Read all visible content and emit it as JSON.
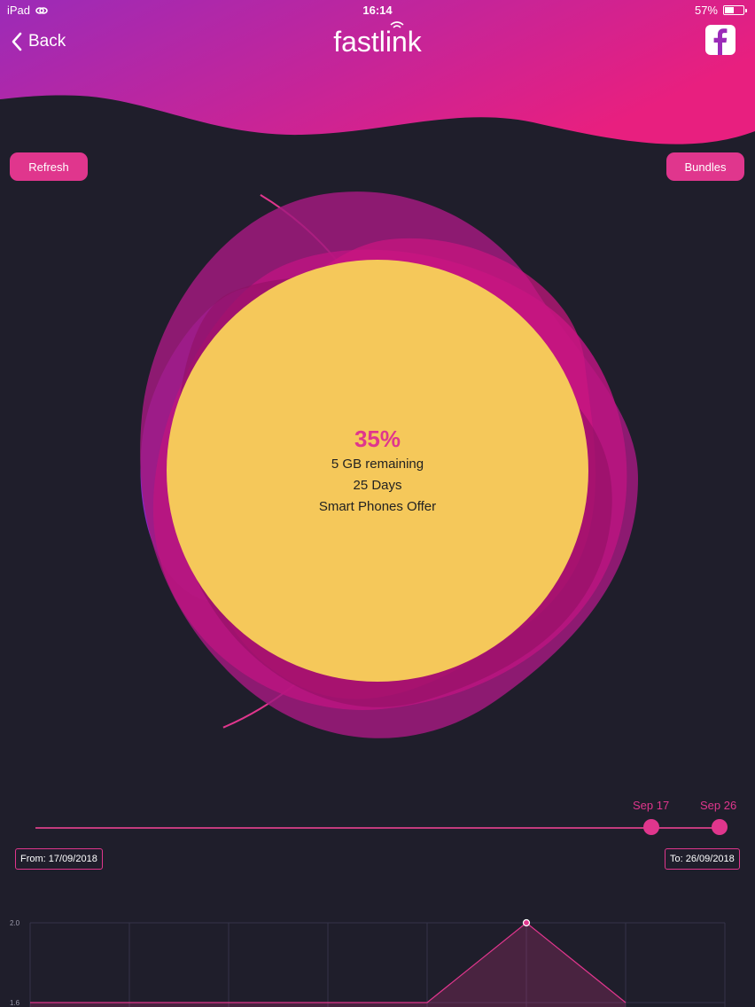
{
  "status_bar": {
    "device": "iPad",
    "time": "16:14",
    "battery": "57%",
    "battery_level": 0.57
  },
  "header": {
    "back_label": "Back",
    "logo_text": "fastlink"
  },
  "buttons": {
    "refresh": "Refresh",
    "bundles": "Bundles"
  },
  "usage": {
    "percent_label": "35%",
    "percent_value": 35,
    "remaining": "5 GB remaining",
    "days": "25 Days",
    "plan": "Smart Phones Offer"
  },
  "range": {
    "start_label": "Sep 17",
    "end_label": "Sep 26",
    "from_text": "From: 17/09/2018",
    "to_text": "To: 26/09/2018"
  },
  "chart_data": {
    "type": "line",
    "y_ticks": [
      "2.0",
      "1.6"
    ],
    "ylim": [
      1.6,
      2.0
    ],
    "x": [
      1,
      2,
      3,
      4,
      5,
      6,
      7
    ],
    "series": [
      {
        "values": [
          1.6,
          1.6,
          1.6,
          1.6,
          1.6,
          2.0,
          1.6
        ]
      }
    ],
    "grid": true
  },
  "colors": {
    "accent": "#e0368d",
    "background": "#1f1e2b",
    "circle": "#f5c85a",
    "header_gradient": [
      "#9b2bb8",
      "#e81f7f"
    ]
  }
}
